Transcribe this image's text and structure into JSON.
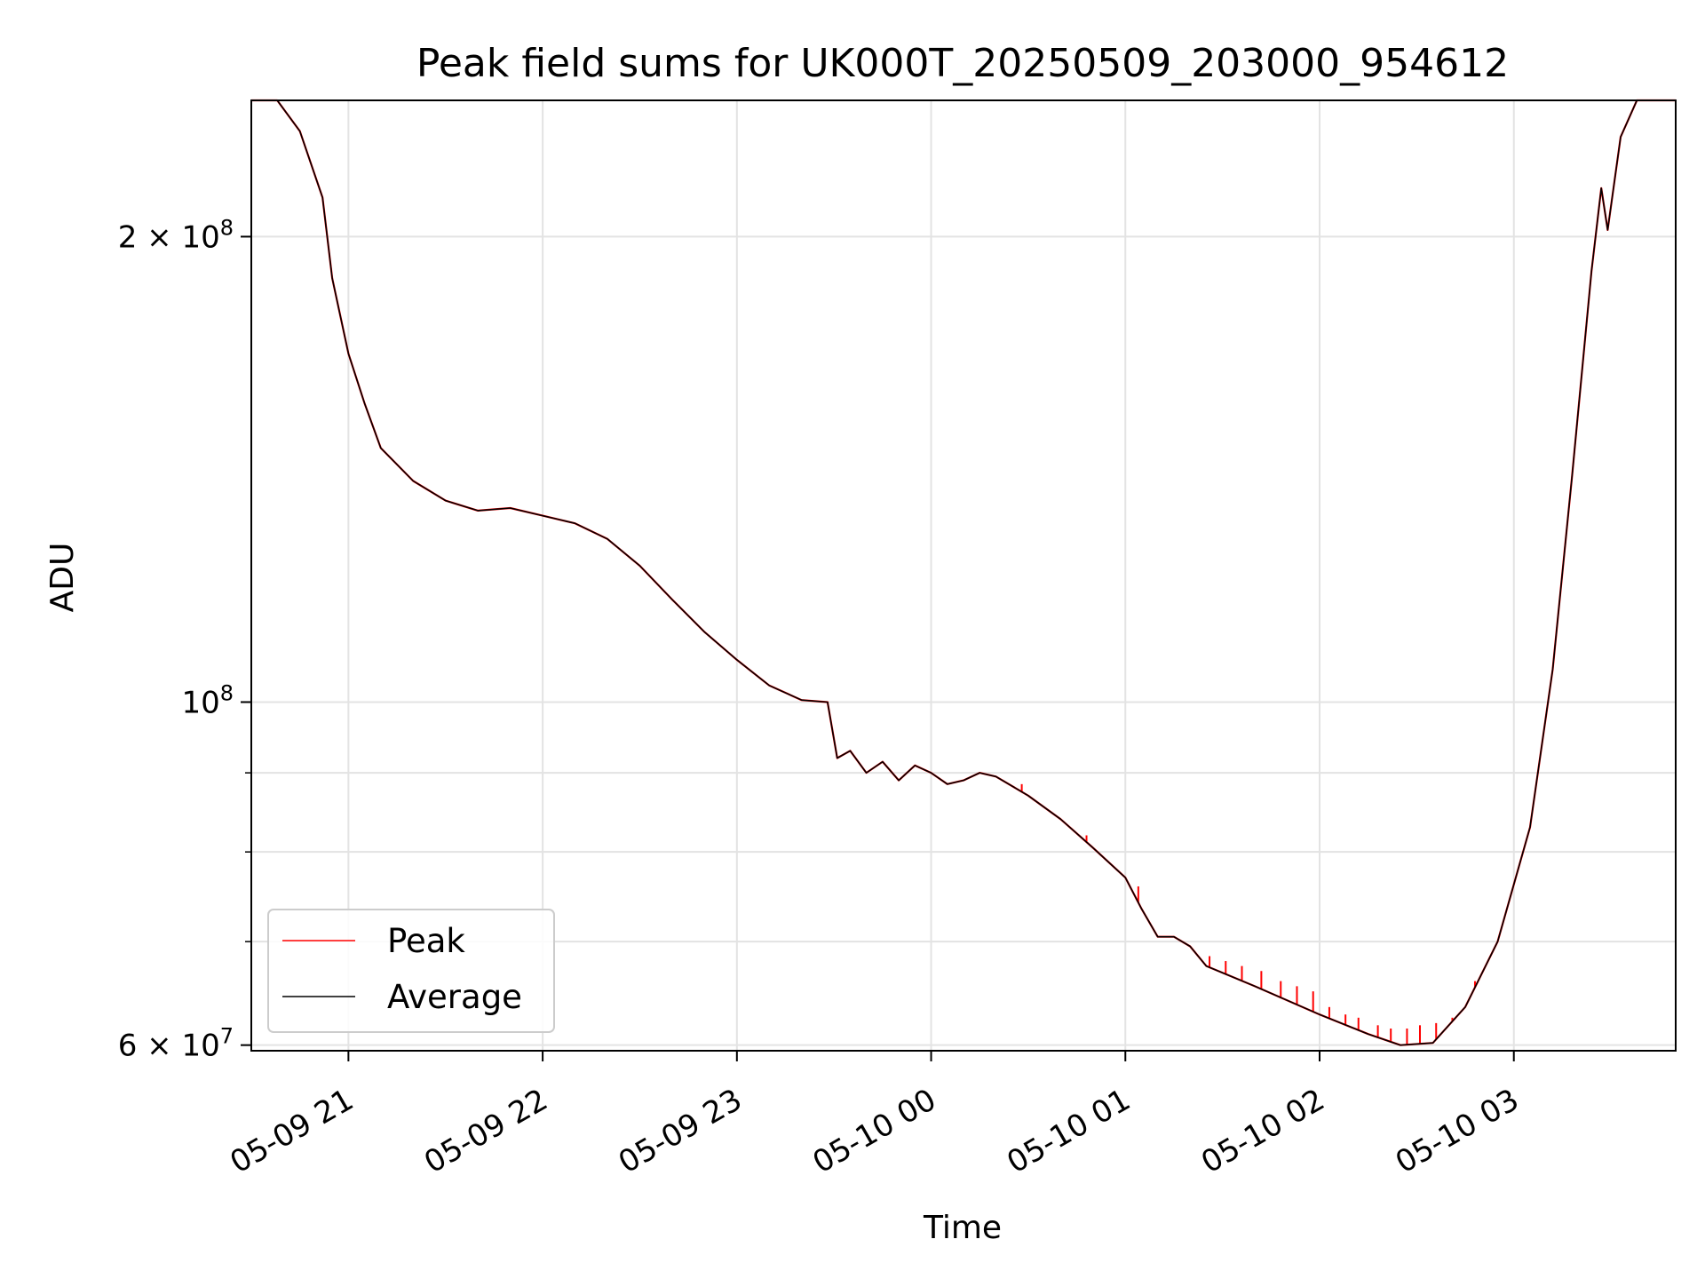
{
  "chart_data": {
    "type": "line",
    "title": "Peak field sums for UK000T_20250509_203000_954612",
    "xlabel": "Time",
    "ylabel": "ADU",
    "y_scale": "log",
    "ylim": [
      59500000,
      245000000
    ],
    "xlim": [
      "2025-05-09 20:30",
      "2025-05-10 03:50"
    ],
    "grid": true,
    "legend": {
      "position": "lower-left",
      "entries": [
        "Peak",
        "Average"
      ]
    },
    "x_ticks": [
      {
        "t": "2025-05-09 21:00",
        "label": "05-09 21"
      },
      {
        "t": "2025-05-09 22:00",
        "label": "05-09 22"
      },
      {
        "t": "2025-05-09 23:00",
        "label": "05-09 23"
      },
      {
        "t": "2025-05-10 00:00",
        "label": "05-10 00"
      },
      {
        "t": "2025-05-10 01:00",
        "label": "05-10 01"
      },
      {
        "t": "2025-05-10 02:00",
        "label": "05-10 02"
      },
      {
        "t": "2025-05-10 03:00",
        "label": "05-10 03"
      }
    ],
    "y_major_ticks": [
      {
        "value": 60000000,
        "base": "6 × 10",
        "exp": "7"
      },
      {
        "value": 100000000,
        "base": "10",
        "exp": "8"
      },
      {
        "value": 200000000,
        "base": "2 × 10",
        "exp": "8"
      }
    ],
    "y_minor_gridlines": [
      70000000,
      80000000,
      90000000
    ],
    "series": [
      {
        "name": "Average",
        "color": "#000000",
        "points": [
          [
            "2025-05-09 20:30",
            245000000
          ],
          [
            "2025-05-09 20:38",
            245000000
          ],
          [
            "2025-05-09 20:45",
            234000000
          ],
          [
            "2025-05-09 20:52",
            212000000
          ],
          [
            "2025-05-09 20:55",
            188000000
          ],
          [
            "2025-05-09 21:00",
            168000000
          ],
          [
            "2025-05-09 21:05",
            156000000
          ],
          [
            "2025-05-09 21:10",
            146000000
          ],
          [
            "2025-05-09 21:20",
            139000000
          ],
          [
            "2025-05-09 21:30",
            135000000
          ],
          [
            "2025-05-09 21:40",
            133000000
          ],
          [
            "2025-05-09 21:50",
            133500000
          ],
          [
            "2025-05-09 22:00",
            132000000
          ],
          [
            "2025-05-09 22:10",
            130500000
          ],
          [
            "2025-05-09 22:20",
            127500000
          ],
          [
            "2025-05-09 22:30",
            122500000
          ],
          [
            "2025-05-09 22:40",
            116500000
          ],
          [
            "2025-05-09 22:50",
            111000000
          ],
          [
            "2025-05-09 23:00",
            106500000
          ],
          [
            "2025-05-09 23:10",
            102500000
          ],
          [
            "2025-05-09 23:20",
            100300000
          ],
          [
            "2025-05-09 23:28",
            100000000
          ],
          [
            "2025-05-09 23:31",
            92000000
          ],
          [
            "2025-05-09 23:35",
            93000000
          ],
          [
            "2025-05-09 23:40",
            90000000
          ],
          [
            "2025-05-09 23:45",
            91500000
          ],
          [
            "2025-05-09 23:50",
            89000000
          ],
          [
            "2025-05-09 23:55",
            91000000
          ],
          [
            "2025-05-10 00:00",
            90000000
          ],
          [
            "2025-05-10 00:05",
            88500000
          ],
          [
            "2025-05-10 00:10",
            89000000
          ],
          [
            "2025-05-10 00:15",
            90000000
          ],
          [
            "2025-05-10 00:20",
            89500000
          ],
          [
            "2025-05-10 00:30",
            87000000
          ],
          [
            "2025-05-10 00:40",
            84000000
          ],
          [
            "2025-05-10 00:50",
            80500000
          ],
          [
            "2025-05-10 01:00",
            77000000
          ],
          [
            "2025-05-10 01:05",
            73500000
          ],
          [
            "2025-05-10 01:10",
            70500000
          ],
          [
            "2025-05-10 01:15",
            70500000
          ],
          [
            "2025-05-10 01:20",
            69500000
          ],
          [
            "2025-05-10 01:25",
            67500000
          ],
          [
            "2025-05-10 01:40",
            65500000
          ],
          [
            "2025-05-10 02:00",
            62800000
          ],
          [
            "2025-05-10 02:15",
            61000000
          ],
          [
            "2025-05-10 02:25",
            60000000
          ],
          [
            "2025-05-10 02:35",
            60200000
          ],
          [
            "2025-05-10 02:45",
            63500000
          ],
          [
            "2025-05-10 02:55",
            70000000
          ],
          [
            "2025-05-10 03:05",
            83000000
          ],
          [
            "2025-05-10 03:12",
            105000000
          ],
          [
            "2025-05-10 03:18",
            140000000
          ],
          [
            "2025-05-10 03:24",
            190000000
          ],
          [
            "2025-05-10 03:27",
            215000000
          ],
          [
            "2025-05-10 03:29",
            202000000
          ],
          [
            "2025-05-10 03:33",
            232000000
          ],
          [
            "2025-05-10 03:38",
            245000000
          ],
          [
            "2025-05-10 03:50",
            245000000
          ]
        ]
      },
      {
        "name": "Peak",
        "color": "#ff0000",
        "spikes": [
          [
            "2025-05-10 00:28",
            88500000
          ],
          [
            "2025-05-10 00:48",
            82000000
          ],
          [
            "2025-05-10 01:04",
            76000000
          ],
          [
            "2025-05-10 01:26",
            68500000
          ],
          [
            "2025-05-10 01:31",
            68000000
          ],
          [
            "2025-05-10 01:36",
            67500000
          ],
          [
            "2025-05-10 01:42",
            67000000
          ],
          [
            "2025-05-10 01:48",
            66000000
          ],
          [
            "2025-05-10 01:53",
            65500000
          ],
          [
            "2025-05-10 01:58",
            65000000
          ],
          [
            "2025-05-10 02:03",
            63500000
          ],
          [
            "2025-05-10 02:08",
            62800000
          ],
          [
            "2025-05-10 02:12",
            62500000
          ],
          [
            "2025-05-10 02:18",
            61800000
          ],
          [
            "2025-05-10 02:22",
            61500000
          ],
          [
            "2025-05-10 02:27",
            61500000
          ],
          [
            "2025-05-10 02:31",
            61800000
          ],
          [
            "2025-05-10 02:36",
            62000000
          ],
          [
            "2025-05-10 02:41",
            62500000
          ],
          [
            "2025-05-10 02:48",
            66000000
          ]
        ]
      }
    ]
  }
}
